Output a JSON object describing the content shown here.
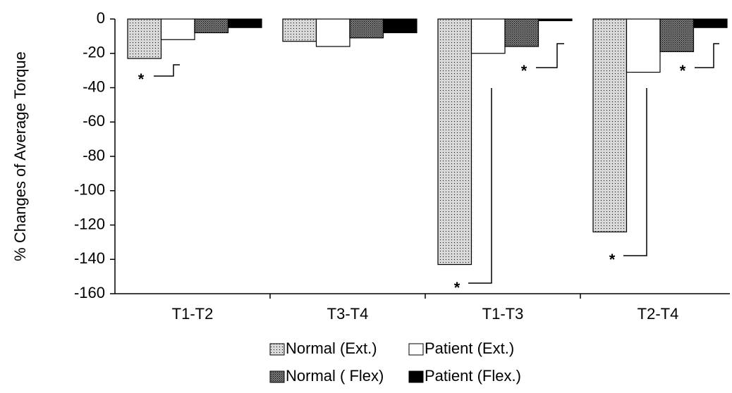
{
  "chart_data": {
    "type": "bar",
    "y_label": "% Changes of Average Torque",
    "categories": [
      "T1-T2",
      "T3-T4",
      "T1-T3",
      "T2-T4"
    ],
    "series": [
      {
        "name": "Normal (Ext.)",
        "color": "#d8d8d8",
        "values": [
          -23,
          -13,
          -143,
          -124
        ]
      },
      {
        "name": "Patient (Ext.)",
        "color": "#ffffff",
        "values": [
          -12,
          -16,
          -20,
          -31
        ]
      },
      {
        "name": "Normal ( Flex)",
        "color": "#7a7a7a",
        "values": [
          -8,
          -11,
          -16,
          -19
        ]
      },
      {
        "name": "Patient (Flex.)",
        "color": "#000000",
        "values": [
          -5,
          -8,
          -1,
          -5
        ]
      }
    ],
    "ylim": [
      -160,
      0
    ],
    "yticks": [
      0,
      -20,
      -40,
      -60,
      -80,
      -100,
      -120,
      -140,
      -160
    ],
    "annotations": [
      "*",
      "*",
      "*",
      "*",
      "*"
    ]
  }
}
